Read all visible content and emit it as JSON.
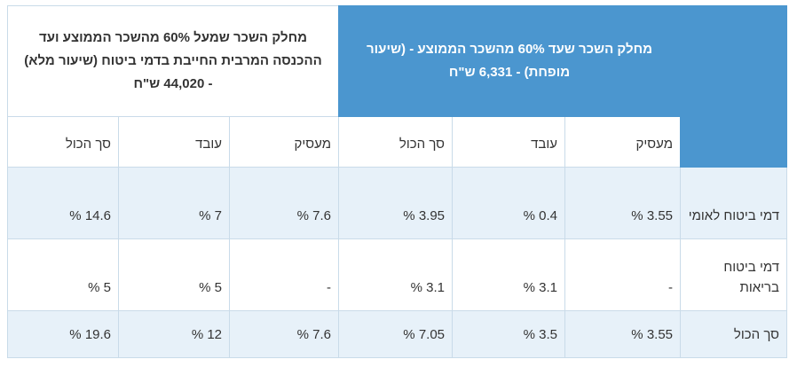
{
  "table": {
    "group_headers": [
      "מחלק השכר שעד 60% מהשכר הממוצע - (שיעור מופחת) - 6,331 ש\"ח",
      "מחלק השכר שמעל 60% מהשכר הממוצע ועד ההכנסה המרבית החייבת בדמי ביטוח (שיעור מלא) - 44,020 ש\"ח"
    ],
    "sub_headers": [
      "מעסיק",
      "עובד",
      "סך הכול",
      "מעסיק",
      "עובד",
      "סך הכול"
    ],
    "rows": [
      {
        "label": "דמי ביטוח לאומי",
        "cells": [
          "3.55 %",
          "0.4 %",
          "3.95 %",
          "7.6 %",
          "7 %",
          "14.6 %"
        ]
      },
      {
        "label": "דמי ביטוח בריאות",
        "cells": [
          "-",
          "3.1 %",
          "3.1 %",
          "-",
          "5 %",
          "5 %"
        ]
      },
      {
        "label": "סך הכול",
        "cells": [
          "3.55 %",
          "3.5 %",
          "7.05 %",
          "7.6 %",
          "12 %",
          "19.6 %"
        ]
      }
    ]
  }
}
